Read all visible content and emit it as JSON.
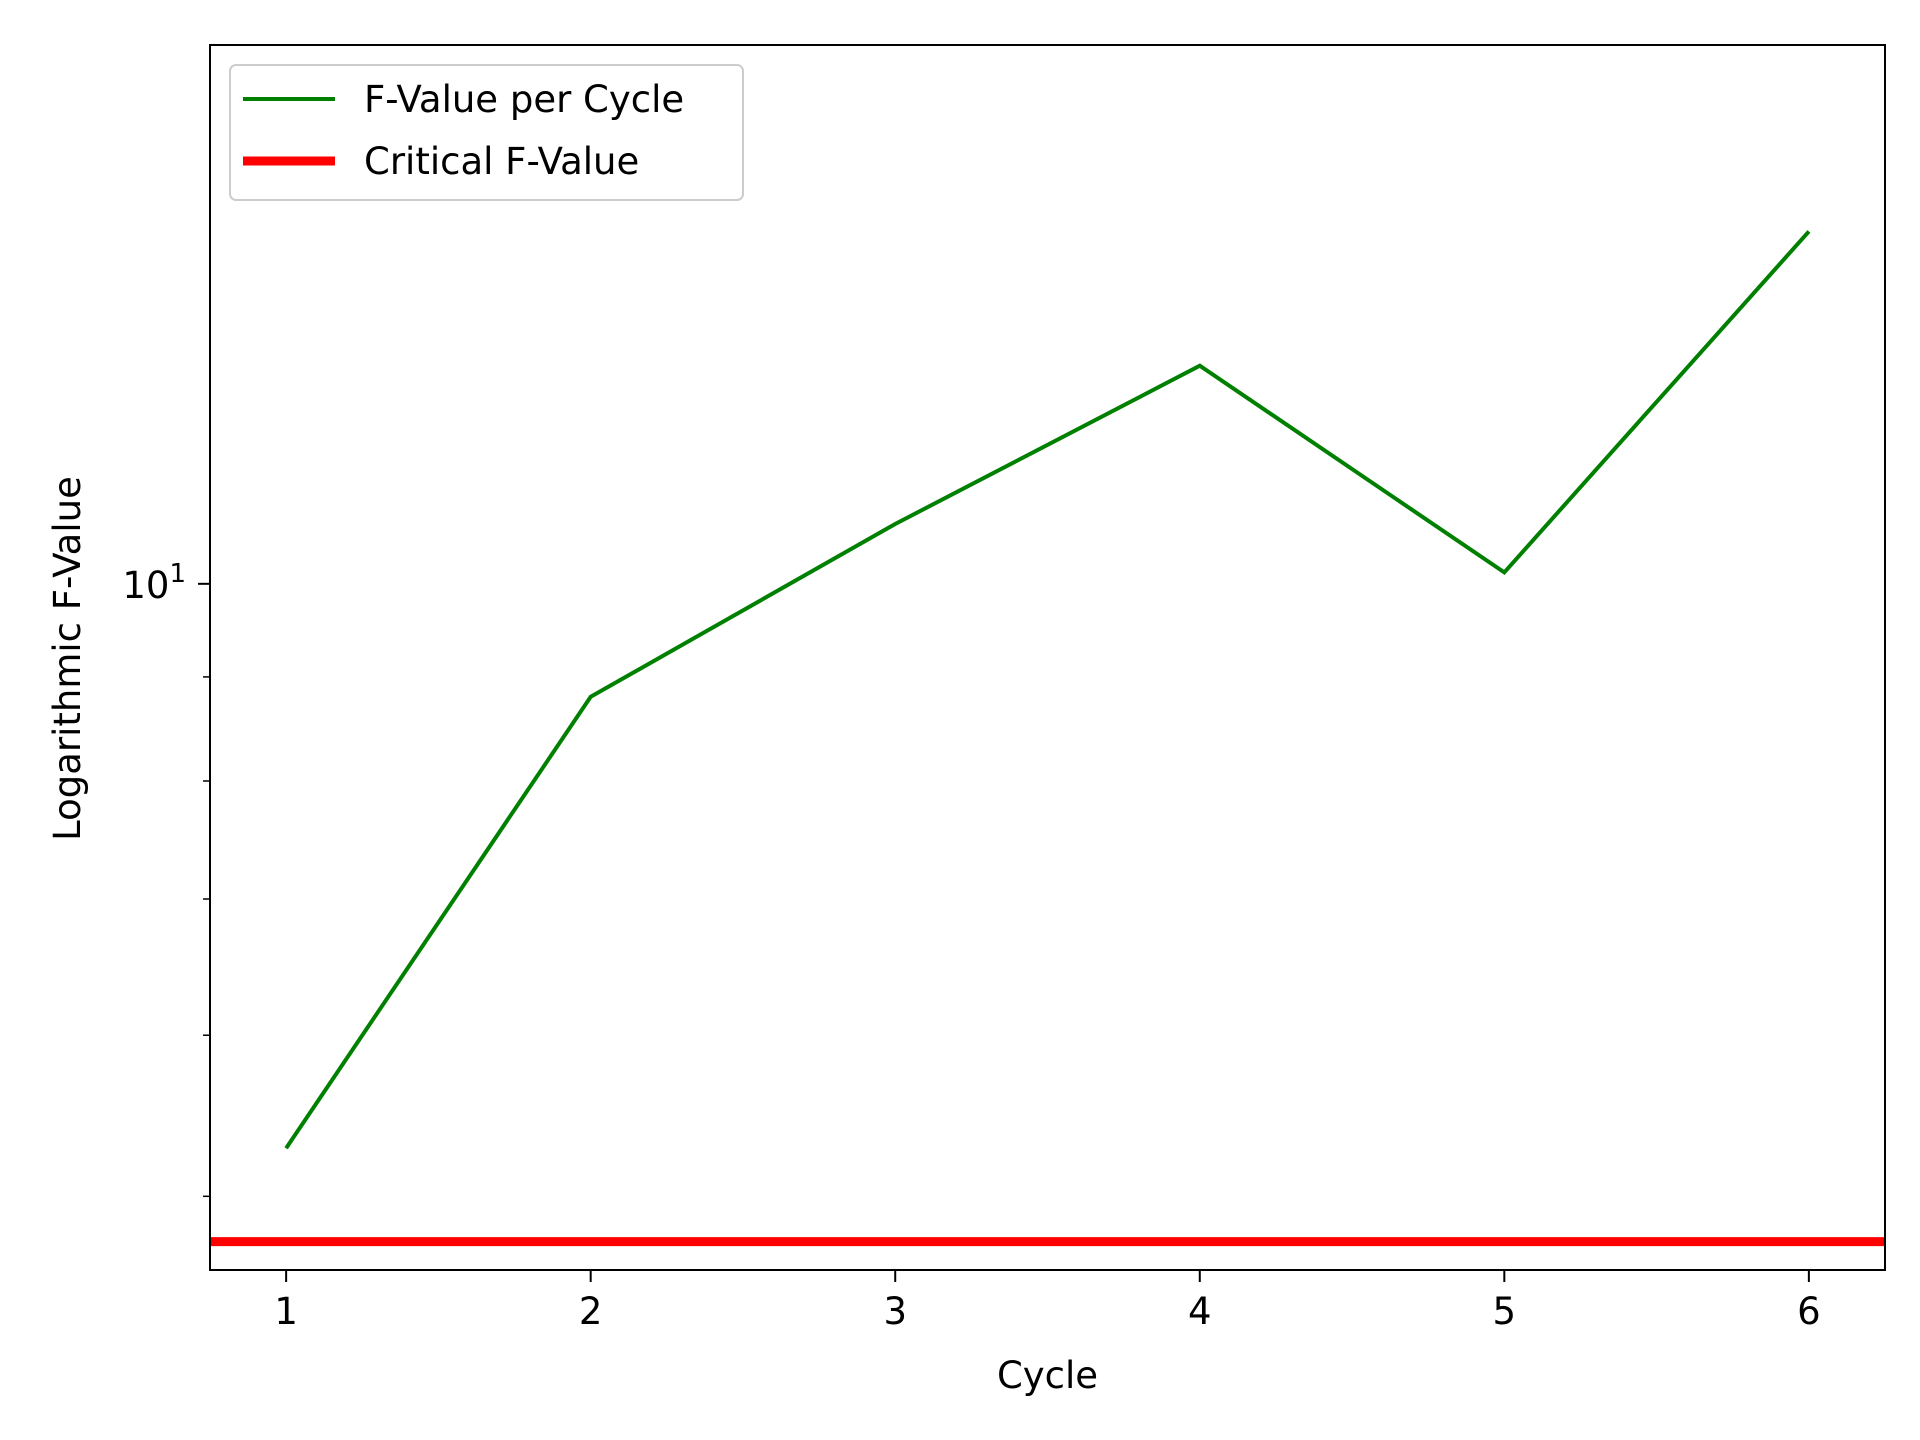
{
  "chart_data": {
    "type": "line",
    "title": "",
    "xlabel": "Cycle",
    "ylabel": "Logarithmic F-Value",
    "xscale": "linear",
    "yscale": "log",
    "xlim": [
      0.75,
      6.25
    ],
    "ylim": [
      4.6,
      18.4
    ],
    "x_ticks": [
      1,
      2,
      3,
      4,
      5,
      6
    ],
    "x_tick_labels": [
      "1",
      "2",
      "3",
      "4",
      "5",
      "6"
    ],
    "y_major_ticks": [
      10
    ],
    "y_tick_base": "10",
    "y_tick_exp": "1",
    "y_minor_ticks": [
      5,
      6,
      7,
      8,
      9
    ],
    "grid": false,
    "legend_position": "top-left",
    "series": [
      {
        "name": "F-Value per Cycle",
        "color": "#008000",
        "x": [
          1,
          2,
          3,
          4,
          5,
          6
        ],
        "values": [
          5.28,
          8.8,
          10.7,
          12.8,
          10.13,
          14.9
        ]
      },
      {
        "name": "Critical F-Value",
        "color": "#ff0000",
        "kind": "horizontal-line",
        "y": 4.75
      }
    ]
  }
}
